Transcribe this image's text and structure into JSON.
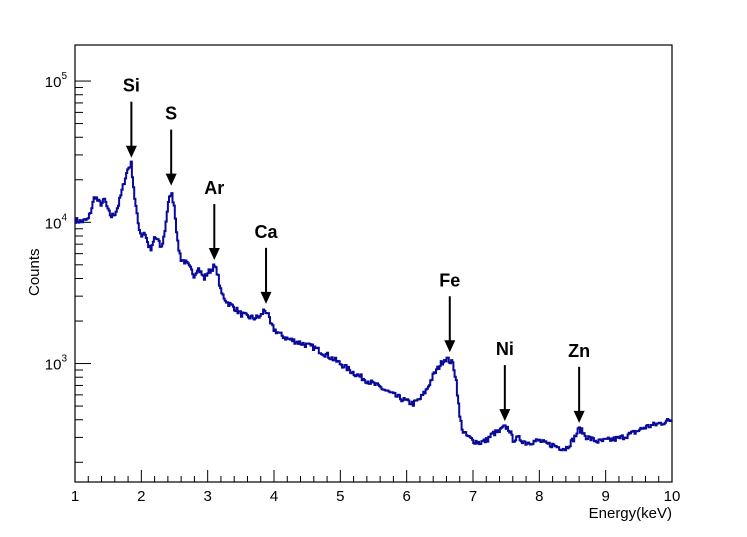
{
  "chart_data": {
    "type": "line",
    "title": "",
    "xlabel": "Energy(keV)",
    "ylabel": "Counts",
    "xlim": [
      1,
      10
    ],
    "ylim": [
      145,
      180000
    ],
    "yscale": "log",
    "grid": false,
    "line_color": "#0a0a9a",
    "x_ticks": [
      {
        "value": 1,
        "label": "1"
      },
      {
        "value": 2,
        "label": "2"
      },
      {
        "value": 3,
        "label": "3"
      },
      {
        "value": 4,
        "label": "4"
      },
      {
        "value": 5,
        "label": "5"
      },
      {
        "value": 6,
        "label": "6"
      },
      {
        "value": 7,
        "label": "7"
      },
      {
        "value": 8,
        "label": "8"
      },
      {
        "value": 9,
        "label": "9"
      },
      {
        "value": 10,
        "label": "10"
      }
    ],
    "y_ticks": [
      {
        "value": 1000,
        "base": "10",
        "exp": "3"
      },
      {
        "value": 10000,
        "base": "10",
        "exp": "4"
      },
      {
        "value": 100000,
        "base": "10",
        "exp": "5"
      }
    ],
    "series": [
      {
        "x": [
          1.0,
          1.1,
          1.2,
          1.25,
          1.3,
          1.35,
          1.4,
          1.45,
          1.5,
          1.55,
          1.6,
          1.65,
          1.7,
          1.75,
          1.8,
          1.85,
          1.9,
          1.95,
          2.0,
          2.05,
          2.1,
          2.15,
          2.2,
          2.25,
          2.3,
          2.35,
          2.4,
          2.45,
          2.5,
          2.55,
          2.6,
          2.65,
          2.7,
          2.75,
          2.8,
          2.85,
          2.9,
          2.95,
          3.0,
          3.05,
          3.1,
          3.15,
          3.2,
          3.3,
          3.4,
          3.5,
          3.6,
          3.7,
          3.8,
          3.85,
          3.9,
          3.95,
          4.0,
          4.1,
          4.2,
          4.4,
          4.6,
          4.8,
          5.0,
          5.2,
          5.4,
          5.6,
          5.8,
          6.0,
          6.1,
          6.2,
          6.3,
          6.4,
          6.5,
          6.55,
          6.6,
          6.65,
          6.7,
          6.75,
          6.8,
          6.85,
          6.9,
          7.0,
          7.1,
          7.2,
          7.3,
          7.4,
          7.45,
          7.5,
          7.55,
          7.6,
          7.7,
          7.8,
          7.9,
          8.0,
          8.1,
          8.2,
          8.3,
          8.4,
          8.5,
          8.55,
          8.6,
          8.65,
          8.7,
          8.8,
          8.9,
          9.0,
          9.2,
          9.4,
          9.6,
          9.8,
          10.0
        ],
        "y": [
          10400,
          10100,
          10500,
          12500,
          15500,
          14000,
          13500,
          14500,
          12000,
          11000,
          11500,
          13000,
          16000,
          20000,
          24000,
          26000,
          15000,
          10000,
          8000,
          8600,
          7000,
          6300,
          7800,
          7500,
          6500,
          8300,
          13000,
          16500,
          13000,
          7000,
          5500,
          5300,
          5000,
          4600,
          4200,
          4800,
          4400,
          4000,
          4400,
          4600,
          4900,
          4400,
          3200,
          2700,
          2500,
          2250,
          2150,
          2100,
          2150,
          2400,
          2300,
          1900,
          1750,
          1600,
          1500,
          1400,
          1300,
          1150,
          1000,
          860,
          760,
          680,
          600,
          540,
          520,
          560,
          650,
          820,
          970,
          1050,
          1090,
          1040,
          1000,
          750,
          420,
          330,
          310,
          285,
          275,
          285,
          320,
          330,
          350,
          355,
          340,
          290,
          295,
          275,
          280,
          285,
          270,
          265,
          255,
          250,
          285,
          310,
          345,
          330,
          305,
          290,
          280,
          285,
          295,
          320,
          355,
          375,
          400
        ]
      }
    ],
    "annotations": [
      {
        "label": "Si",
        "x": 1.85,
        "y": 26000
      },
      {
        "label": "S",
        "x": 2.45,
        "y": 16500
      },
      {
        "label": "Ar",
        "x": 3.1,
        "y": 4900
      },
      {
        "label": "Ca",
        "x": 3.88,
        "y": 2400
      },
      {
        "label": "Fe",
        "x": 6.65,
        "y": 1090
      },
      {
        "label": "Ni",
        "x": 7.48,
        "y": 355
      },
      {
        "label": "Zn",
        "x": 8.6,
        "y": 345
      }
    ]
  }
}
